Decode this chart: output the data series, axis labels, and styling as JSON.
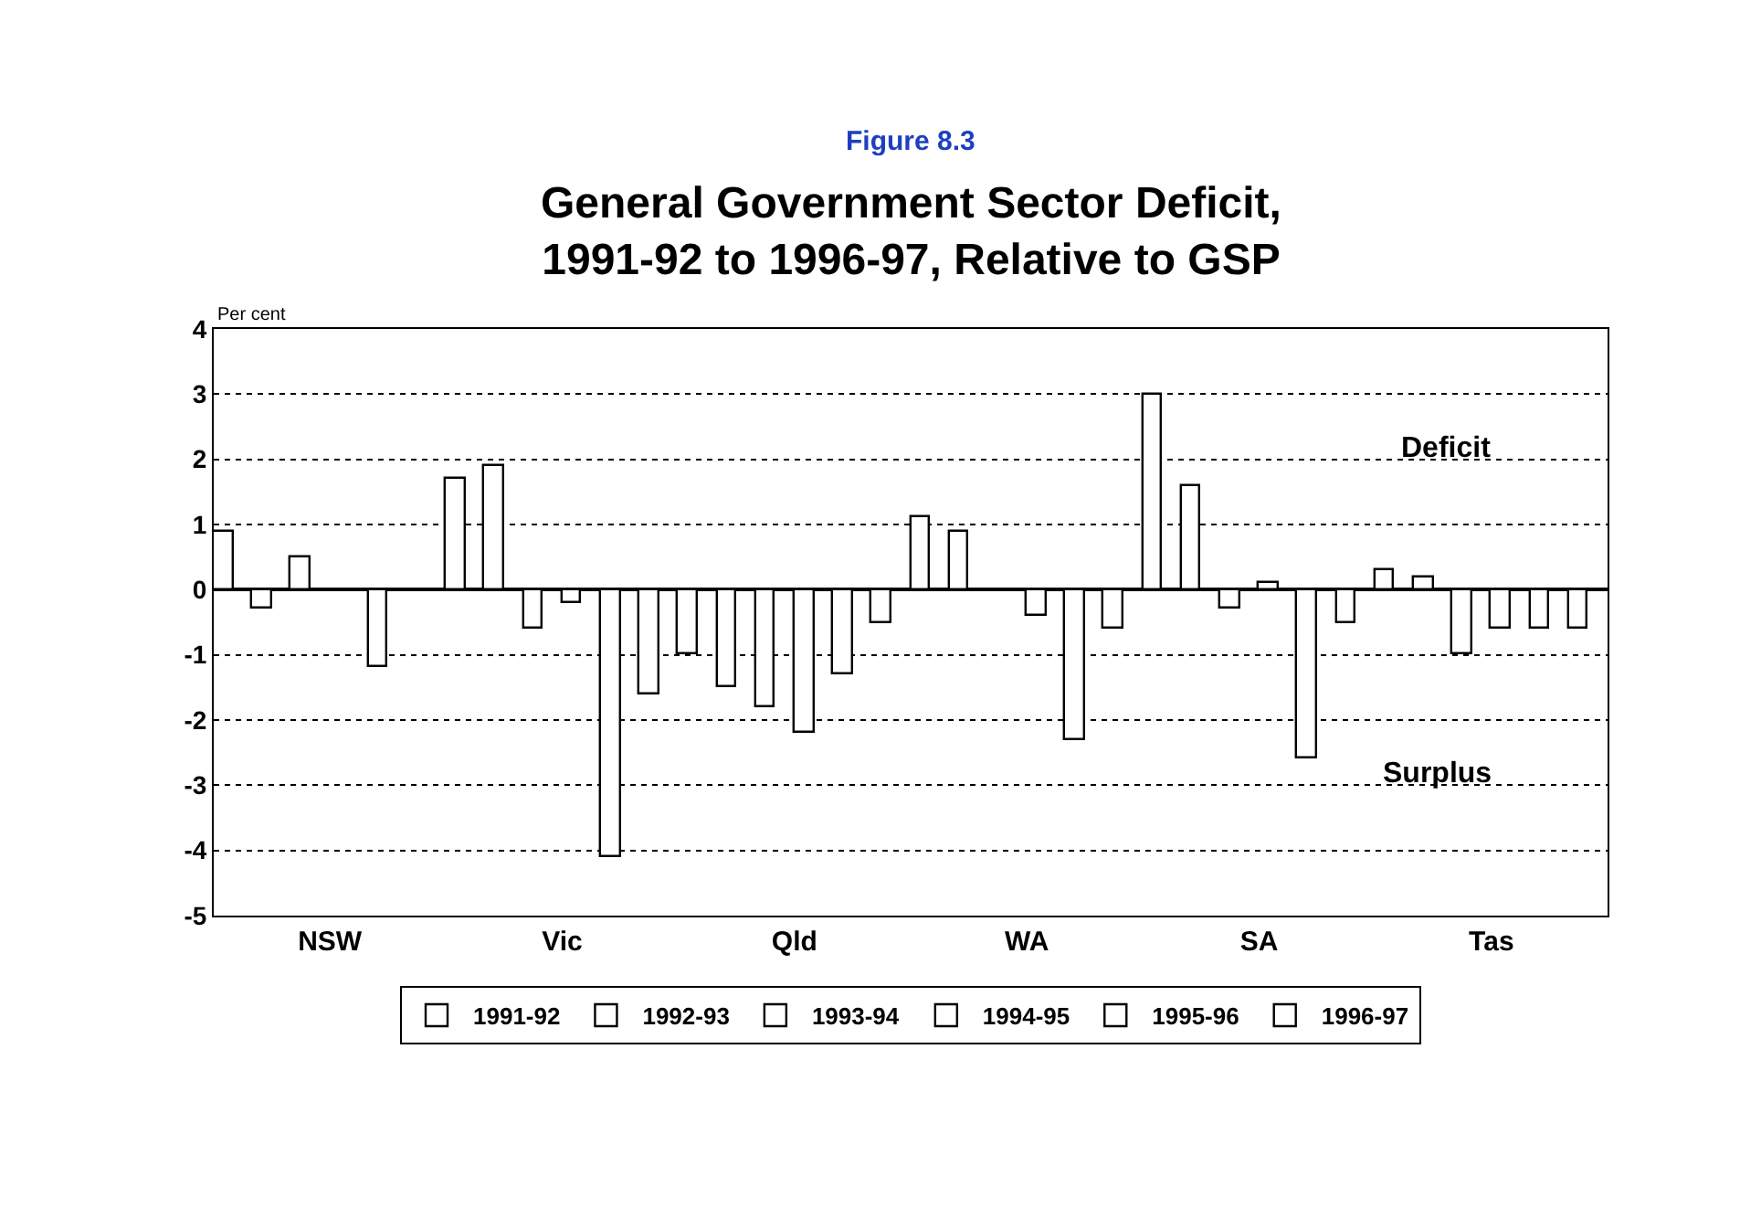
{
  "chart_data": {
    "type": "bar",
    "subtitle": "Figure 8.3",
    "title": "General Government Sector Deficit, 1991-92 to 1996-97, Relative to GSP",
    "ylabel": "Per cent",
    "categories": [
      "NSW",
      "Vic",
      "Qld",
      "WA",
      "SA",
      "Tas"
    ],
    "series": [
      {
        "name": "1991-92",
        "color": "#ffffff",
        "values": [
          0.9,
          1.7,
          -1.0,
          1.1,
          3.0,
          0.3
        ]
      },
      {
        "name": "1992-93",
        "color": "#ffffff",
        "values": [
          -0.3,
          1.9,
          -1.5,
          0.9,
          1.6,
          0.2
        ]
      },
      {
        "name": "1993-94",
        "color": "#ffffff",
        "values": [
          0.5,
          -0.6,
          -1.8,
          0,
          -0.3,
          -1.0
        ]
      },
      {
        "name": "1994-95",
        "color": "#ffffff",
        "values": [
          0,
          -0.2,
          -2.2,
          -0.4,
          0.1,
          -0.6
        ]
      },
      {
        "name": "1995-96",
        "color": "#ffffff",
        "values": [
          -1.2,
          -4.1,
          -1.3,
          -2.3,
          -2.6,
          -0.6
        ]
      },
      {
        "name": "1996-97",
        "color": "#ffffff",
        "values": [
          0,
          -1.6,
          -0.5,
          -0.6,
          -0.5,
          -0.6
        ]
      }
    ],
    "ylim": [
      -5,
      4
    ],
    "yticks": [
      -5,
      -4,
      -3,
      -2,
      -1,
      0,
      1,
      2,
      3,
      4
    ],
    "grid": "y",
    "legend": "bottom",
    "annotations": [
      "Deficit",
      "Surplus"
    ]
  }
}
